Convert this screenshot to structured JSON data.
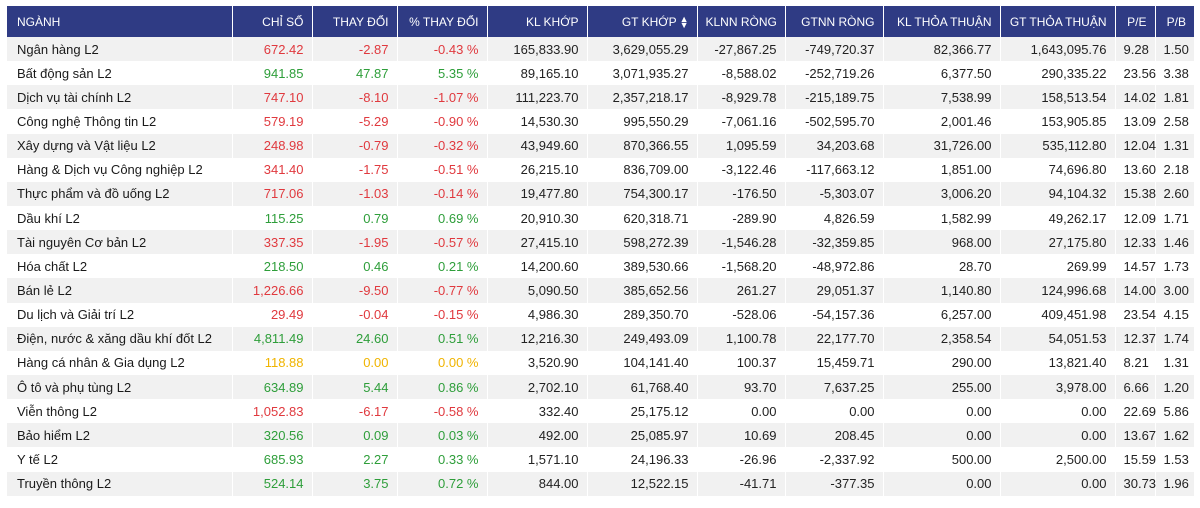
{
  "headers": [
    "NGÀNH",
    "CHỈ SỐ",
    "THAY ĐỔI",
    "% THAY ĐỔI",
    "KL KHỚP",
    "GT KHỚP",
    "KLNN RÒNG",
    "GTNN RÒNG",
    "KL THỎA THUẬN",
    "GT THỎA THUẬN",
    "P/E",
    "P/B"
  ],
  "sort_icon": "sort-icon",
  "colors": {
    "header_bg": "#2f3b84",
    "up": "#2e9e3a",
    "down": "#e0393e",
    "flat": "#f0b400"
  },
  "rows": [
    {
      "name": "Ngân hàng L2",
      "index": "672.42",
      "change": "-2.87",
      "pct": "-0.43 %",
      "kl_khop": "165,833.90",
      "gt_khop": "3,629,055.29",
      "klnn": "-27,867.25",
      "gtnn": "-749,720.37",
      "kl_tt": "82,366.77",
      "gt_tt": "1,643,095.76",
      "pe": "9.28",
      "pb": "1.50",
      "trend": "down"
    },
    {
      "name": "Bất động sản L2",
      "index": "941.85",
      "change": "47.87",
      "pct": "5.35 %",
      "kl_khop": "89,165.10",
      "gt_khop": "3,071,935.27",
      "klnn": "-8,588.02",
      "gtnn": "-252,719.26",
      "kl_tt": "6,377.50",
      "gt_tt": "290,335.22",
      "pe": "23.56",
      "pb": "3.38",
      "trend": "up"
    },
    {
      "name": "Dịch vụ tài chính L2",
      "index": "747.10",
      "change": "-8.10",
      "pct": "-1.07 %",
      "kl_khop": "111,223.70",
      "gt_khop": "2,357,218.17",
      "klnn": "-8,929.78",
      "gtnn": "-215,189.75",
      "kl_tt": "7,538.99",
      "gt_tt": "158,513.54",
      "pe": "14.02",
      "pb": "1.81",
      "trend": "down"
    },
    {
      "name": "Công nghệ Thông tin L2",
      "index": "579.19",
      "change": "-5.29",
      "pct": "-0.90 %",
      "kl_khop": "14,530.30",
      "gt_khop": "995,550.29",
      "klnn": "-7,061.16",
      "gtnn": "-502,595.70",
      "kl_tt": "2,001.46",
      "gt_tt": "153,905.85",
      "pe": "13.09",
      "pb": "2.58",
      "trend": "down"
    },
    {
      "name": "Xây dựng và Vật liệu L2",
      "index": "248.98",
      "change": "-0.79",
      "pct": "-0.32 %",
      "kl_khop": "43,949.60",
      "gt_khop": "870,366.55",
      "klnn": "1,095.59",
      "gtnn": "34,203.68",
      "kl_tt": "31,726.00",
      "gt_tt": "535,112.80",
      "pe": "12.04",
      "pb": "1.31",
      "trend": "down"
    },
    {
      "name": "Hàng & Dịch vụ Công nghiệp L2",
      "index": "341.40",
      "change": "-1.75",
      "pct": "-0.51 %",
      "kl_khop": "26,215.10",
      "gt_khop": "836,709.00",
      "klnn": "-3,122.46",
      "gtnn": "-117,663.12",
      "kl_tt": "1,851.00",
      "gt_tt": "74,696.80",
      "pe": "13.60",
      "pb": "2.18",
      "trend": "down"
    },
    {
      "name": "Thực phẩm và đồ uống L2",
      "index": "717.06",
      "change": "-1.03",
      "pct": "-0.14 %",
      "kl_khop": "19,477.80",
      "gt_khop": "754,300.17",
      "klnn": "-176.50",
      "gtnn": "-5,303.07",
      "kl_tt": "3,006.20",
      "gt_tt": "94,104.32",
      "pe": "15.38",
      "pb": "2.60",
      "trend": "down"
    },
    {
      "name": "Dầu khí L2",
      "index": "115.25",
      "change": "0.79",
      "pct": "0.69 %",
      "kl_khop": "20,910.30",
      "gt_khop": "620,318.71",
      "klnn": "-289.90",
      "gtnn": "4,826.59",
      "kl_tt": "1,582.99",
      "gt_tt": "49,262.17",
      "pe": "12.09",
      "pb": "1.71",
      "trend": "up"
    },
    {
      "name": "Tài nguyên Cơ bản L2",
      "index": "337.35",
      "change": "-1.95",
      "pct": "-0.57 %",
      "kl_khop": "27,415.10",
      "gt_khop": "598,272.39",
      "klnn": "-1,546.28",
      "gtnn": "-32,359.85",
      "kl_tt": "968.00",
      "gt_tt": "27,175.80",
      "pe": "12.33",
      "pb": "1.46",
      "trend": "down"
    },
    {
      "name": "Hóa chất L2",
      "index": "218.50",
      "change": "0.46",
      "pct": "0.21 %",
      "kl_khop": "14,200.60",
      "gt_khop": "389,530.66",
      "klnn": "-1,568.20",
      "gtnn": "-48,972.86",
      "kl_tt": "28.70",
      "gt_tt": "269.99",
      "pe": "14.57",
      "pb": "1.73",
      "trend": "up"
    },
    {
      "name": "Bán lẻ L2",
      "index": "1,226.66",
      "change": "-9.50",
      "pct": "-0.77 %",
      "kl_khop": "5,090.50",
      "gt_khop": "385,652.56",
      "klnn": "261.27",
      "gtnn": "29,051.37",
      "kl_tt": "1,140.80",
      "gt_tt": "124,996.68",
      "pe": "14.00",
      "pb": "3.00",
      "trend": "down"
    },
    {
      "name": "Du lịch và Giải trí L2",
      "index": "29.49",
      "change": "-0.04",
      "pct": "-0.15 %",
      "kl_khop": "4,986.30",
      "gt_khop": "289,350.70",
      "klnn": "-528.06",
      "gtnn": "-54,157.36",
      "kl_tt": "6,257.00",
      "gt_tt": "409,451.98",
      "pe": "23.54",
      "pb": "4.15",
      "trend": "down"
    },
    {
      "name": "Điện, nước & xăng dầu khí đốt L2",
      "index": "4,811.49",
      "change": "24.60",
      "pct": "0.51 %",
      "kl_khop": "12,216.30",
      "gt_khop": "249,493.09",
      "klnn": "1,100.78",
      "gtnn": "22,177.70",
      "kl_tt": "2,358.54",
      "gt_tt": "54,051.53",
      "pe": "12.37",
      "pb": "1.74",
      "trend": "up"
    },
    {
      "name": "Hàng cá nhân & Gia dụng L2",
      "index": "118.88",
      "change": "0.00",
      "pct": "0.00 %",
      "kl_khop": "3,520.90",
      "gt_khop": "104,141.40",
      "klnn": "100.37",
      "gtnn": "15,459.71",
      "kl_tt": "290.00",
      "gt_tt": "13,821.40",
      "pe": "8.21",
      "pb": "1.31",
      "trend": "flat"
    },
    {
      "name": "Ô tô và phụ tùng L2",
      "index": "634.89",
      "change": "5.44",
      "pct": "0.86 %",
      "kl_khop": "2,702.10",
      "gt_khop": "61,768.40",
      "klnn": "93.70",
      "gtnn": "7,637.25",
      "kl_tt": "255.00",
      "gt_tt": "3,978.00",
      "pe": "6.66",
      "pb": "1.20",
      "trend": "up"
    },
    {
      "name": "Viễn thông L2",
      "index": "1,052.83",
      "change": "-6.17",
      "pct": "-0.58 %",
      "kl_khop": "332.40",
      "gt_khop": "25,175.12",
      "klnn": "0.00",
      "gtnn": "0.00",
      "kl_tt": "0.00",
      "gt_tt": "0.00",
      "pe": "22.69",
      "pb": "5.86",
      "trend": "down"
    },
    {
      "name": "Bảo hiểm L2",
      "index": "320.56",
      "change": "0.09",
      "pct": "0.03 %",
      "kl_khop": "492.00",
      "gt_khop": "25,085.97",
      "klnn": "10.69",
      "gtnn": "208.45",
      "kl_tt": "0.00",
      "gt_tt": "0.00",
      "pe": "13.67",
      "pb": "1.62",
      "trend": "up"
    },
    {
      "name": "Y tế L2",
      "index": "685.93",
      "change": "2.27",
      "pct": "0.33 %",
      "kl_khop": "1,571.10",
      "gt_khop": "24,196.33",
      "klnn": "-26.96",
      "gtnn": "-2,337.92",
      "kl_tt": "500.00",
      "gt_tt": "2,500.00",
      "pe": "15.59",
      "pb": "1.53",
      "trend": "up"
    },
    {
      "name": "Truyền thông L2",
      "index": "524.14",
      "change": "3.75",
      "pct": "0.72 %",
      "kl_khop": "844.00",
      "gt_khop": "12,522.15",
      "klnn": "-41.71",
      "gtnn": "-377.35",
      "kl_tt": "0.00",
      "gt_tt": "0.00",
      "pe": "30.73",
      "pb": "1.96",
      "trend": "up"
    }
  ]
}
